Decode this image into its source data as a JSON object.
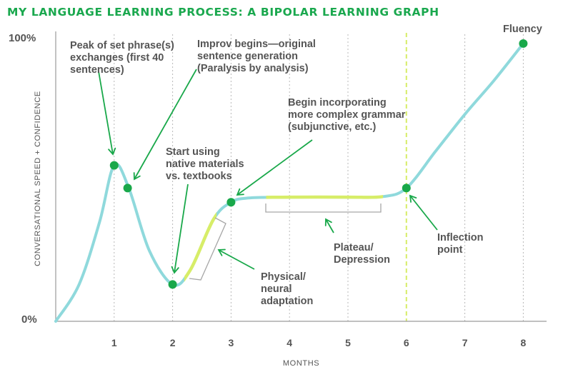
{
  "title": "MY LANGUAGE LEARNING PROCESS: A BIPOLAR LEARNING GRAPH",
  "chart_data": {
    "type": "line",
    "title": "MY LANGUAGE LEARNING PROCESS: A BIPOLAR LEARNING GRAPH",
    "xlabel": "MONTHS",
    "ylabel": "CONVERSATIONAL SPEED + CONFIDENCE",
    "y_tick_labels": [
      "100%",
      "0%"
    ],
    "x_ticks": [
      1,
      2,
      3,
      4,
      5,
      6,
      7,
      8
    ],
    "xlim": [
      0,
      8.4
    ],
    "ylim": [
      0,
      100
    ],
    "grid": "vertical dotted lines at each month",
    "series_color": "#8fd9dc",
    "highlight_color": "#d7ed68",
    "marker_color": "#19a84a",
    "arrow_color": "#19a84a",
    "curve": [
      {
        "x": 0,
        "y": 0
      },
      {
        "x": 0.4,
        "y": 13
      },
      {
        "x": 0.75,
        "y": 35
      },
      {
        "x": 1.0,
        "y": 55
      },
      {
        "x": 1.25,
        "y": 47
      },
      {
        "x": 1.6,
        "y": 25
      },
      {
        "x": 2.0,
        "y": 13
      },
      {
        "x": 2.3,
        "y": 18
      },
      {
        "x": 2.7,
        "y": 36
      },
      {
        "x": 3.0,
        "y": 42
      },
      {
        "x": 3.3,
        "y": 43.5
      },
      {
        "x": 4.0,
        "y": 43.8
      },
      {
        "x": 5.0,
        "y": 43.8
      },
      {
        "x": 5.6,
        "y": 44
      },
      {
        "x": 6.0,
        "y": 47
      },
      {
        "x": 6.5,
        "y": 60
      },
      {
        "x": 7.0,
        "y": 73
      },
      {
        "x": 7.5,
        "y": 85
      },
      {
        "x": 8.0,
        "y": 98
      }
    ],
    "highlights": [
      {
        "from": 2.2,
        "to": 2.75
      },
      {
        "from": 3.6,
        "to": 5.6
      }
    ],
    "inflection_line_x": 6,
    "points": [
      {
        "x": 1.0,
        "y": 55,
        "label": "Peak of set phrase(s) exchanges (first 40 sentences)"
      },
      {
        "x": 1.23,
        "y": 47,
        "label": "Improv begins—original sentence generation (Paralysis by analysis)"
      },
      {
        "x": 2.0,
        "y": 13,
        "label": "Start using native materials vs. textbooks"
      },
      {
        "x": 3.0,
        "y": 42,
        "label": "Begin incorporating more complex grammar (subjunctive, etc.)"
      },
      {
        "x": 6.0,
        "y": 47,
        "label": "Inflection point"
      },
      {
        "x": 8.0,
        "y": 98,
        "label": "Fluency"
      }
    ],
    "annotations": [
      {
        "id": "peak",
        "lines": [
          "Peak of set phrase(s)",
          "exchanges (first 40",
          "sentences)"
        ]
      },
      {
        "id": "improv",
        "lines": [
          "Improv begins—original",
          "sentence generation",
          "(Paralysis by analysis)"
        ]
      },
      {
        "id": "native",
        "lines": [
          "Start using",
          "native materials",
          "vs. textbooks"
        ]
      },
      {
        "id": "grammar",
        "lines": [
          "Begin incorporating",
          "more complex grammar",
          "(subjunctive, etc.)"
        ]
      },
      {
        "id": "physical",
        "lines": [
          "Physical/",
          "neural",
          "adaptation"
        ]
      },
      {
        "id": "plateau",
        "lines": [
          "Plateau/",
          "Depression"
        ]
      },
      {
        "id": "inflection",
        "lines": [
          "Inflection",
          "point"
        ]
      },
      {
        "id": "fluency",
        "lines": [
          "Fluency"
        ]
      }
    ]
  }
}
